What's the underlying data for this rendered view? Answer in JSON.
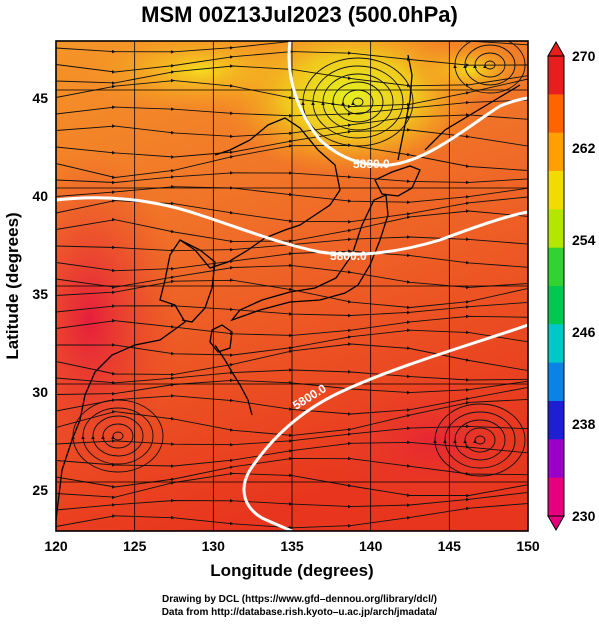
{
  "title": "MSM 00Z13Jul2023 (500.0hPa)",
  "x_axis": {
    "label": "Longitude (degrees)",
    "range": [
      120,
      150
    ],
    "ticks": [
      "120",
      "125",
      "130",
      "135",
      "140",
      "145",
      "150"
    ]
  },
  "y_axis": {
    "label": "Latitude  (degrees)",
    "range": [
      22.5,
      47.5
    ],
    "ticks": [
      "25",
      "30",
      "35",
      "40",
      "45"
    ]
  },
  "colorbar": {
    "min": 230,
    "max": 270,
    "tick_labels": [
      "270",
      "262",
      "254",
      "246",
      "238",
      "230"
    ],
    "colors": [
      "#e6007e",
      "#9b00c8",
      "#1e1ed2",
      "#0a82e6",
      "#00c8c8",
      "#00c850",
      "#32d232",
      "#b4e600",
      "#f0dc00",
      "#ffa000",
      "#ff6400",
      "#e61e1e"
    ]
  },
  "contours": {
    "color": "#ffffff",
    "labels": [
      "5800.0",
      "5880.0",
      "5800.0"
    ]
  },
  "credits": {
    "line1": "Drawing by DCL (https://www.gfd–dennou.org/library/dcl/)",
    "line2": "Data from http://database.rish.kyoto–u.ac.jp/arch/jmadata/"
  }
}
